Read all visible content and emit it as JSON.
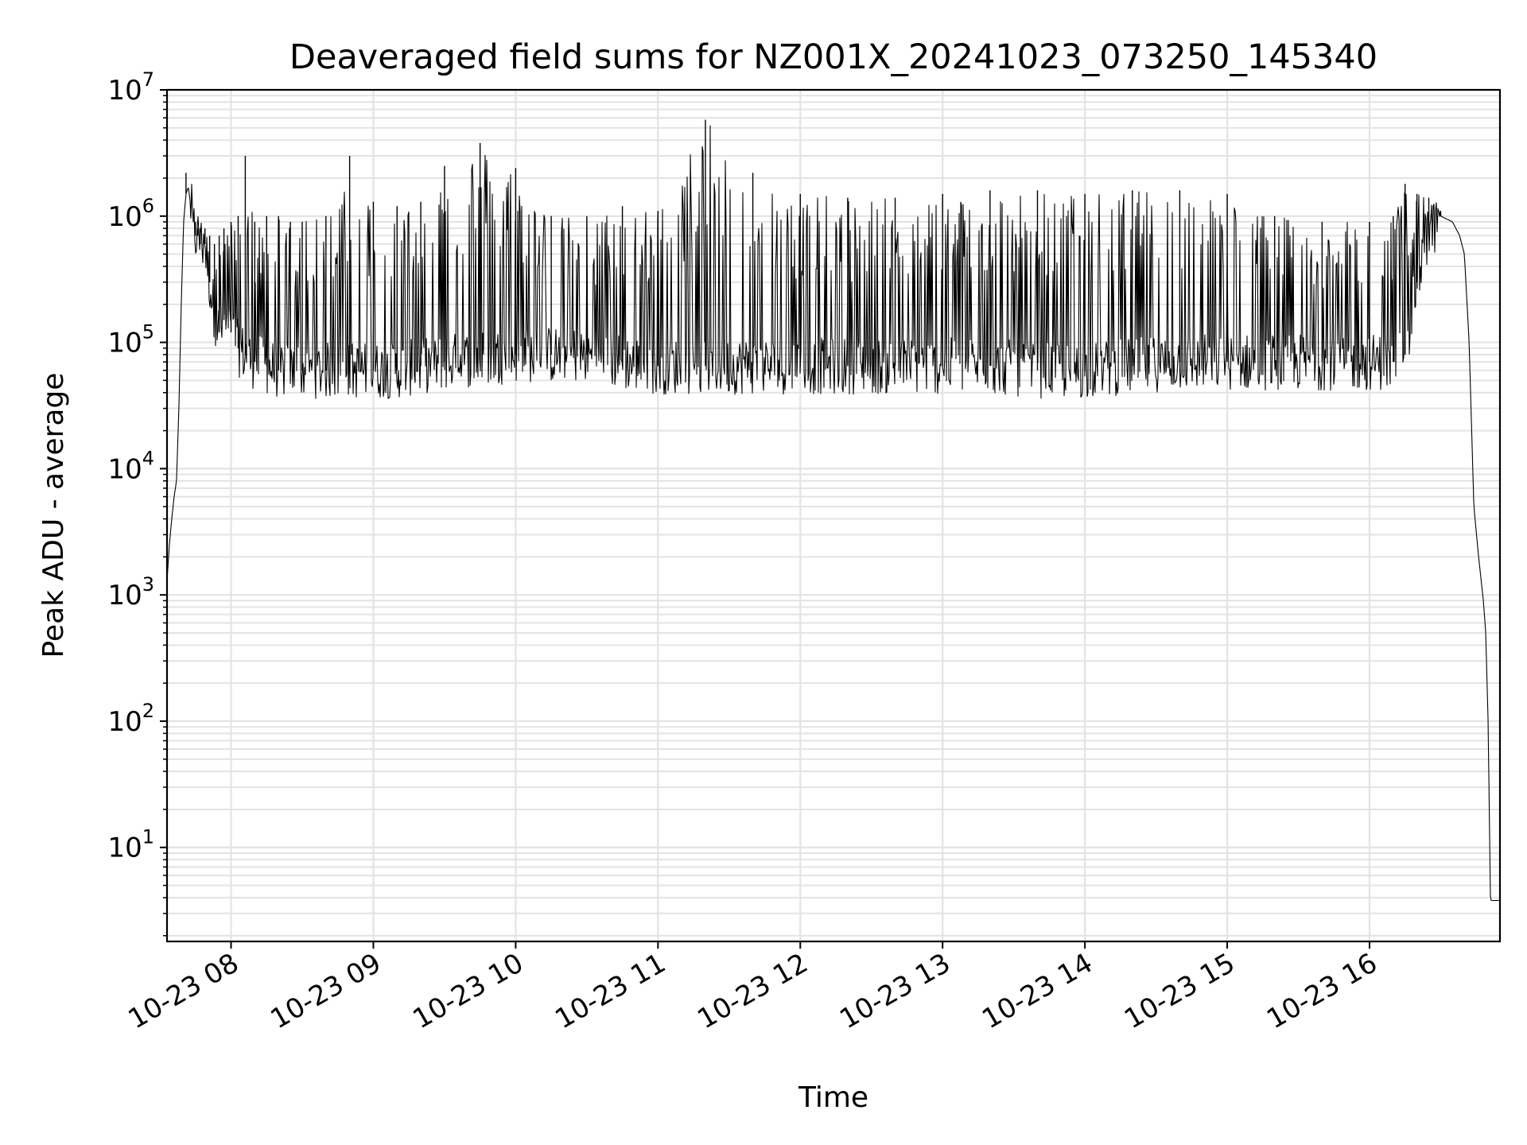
{
  "chart_data": {
    "type": "line",
    "title": "Deaveraged field sums for NZ001X_20241023_073250_145340",
    "xlabel": "Time",
    "ylabel": "Peak ADU - average",
    "yscale": "log",
    "grid": true,
    "xlim": [
      "2024-10-23 07:33",
      "2024-10-23 16:55"
    ],
    "ylim": [
      1.8,
      10000000
    ],
    "x_ticks": [
      {
        "value": "2024-10-23 08:00",
        "label": "10-23 08"
      },
      {
        "value": "2024-10-23 09:00",
        "label": "10-23 09"
      },
      {
        "value": "2024-10-23 10:00",
        "label": "10-23 10"
      },
      {
        "value": "2024-10-23 11:00",
        "label": "10-23 11"
      },
      {
        "value": "2024-10-23 12:00",
        "label": "10-23 12"
      },
      {
        "value": "2024-10-23 13:00",
        "label": "10-23 13"
      },
      {
        "value": "2024-10-23 14:00",
        "label": "10-23 14"
      },
      {
        "value": "2024-10-23 15:00",
        "label": "10-23 15"
      },
      {
        "value": "2024-10-23 16:00",
        "label": "10-23 16"
      }
    ],
    "y_ticks": [
      {
        "value": 10,
        "base": "10",
        "exp": "1"
      },
      {
        "value": 100,
        "base": "10",
        "exp": "2"
      },
      {
        "value": 1000,
        "base": "10",
        "exp": "3"
      },
      {
        "value": 10000,
        "base": "10",
        "exp": "4"
      },
      {
        "value": 100000,
        "base": "10",
        "exp": "5"
      },
      {
        "value": 1000000,
        "base": "10",
        "exp": "6"
      },
      {
        "value": 10000000,
        "base": "10",
        "exp": "7"
      }
    ],
    "series": [
      {
        "color": "#000000",
        "x": [
          "2024-10-23 07:33",
          "2024-10-23 07:34",
          "2024-10-23 07:35",
          "2024-10-23 07:36",
          "2024-10-23 07:37",
          "2024-10-23 07:38",
          "2024-10-23 07:39",
          "2024-10-23 07:40",
          "2024-10-23 07:41",
          "2024-10-23 07:42",
          "2024-10-23 07:43",
          "2024-10-23 07:44",
          "2024-10-23 07:45",
          "2024-10-23 07:46",
          "2024-10-23 07:47",
          "2024-10-23 07:49",
          "2024-10-23 07:51",
          "2024-10-23 07:53",
          "2024-10-23 07:55",
          "2024-10-23 07:57",
          "2024-10-23 08:00",
          "2024-10-23 08:03",
          "2024-10-23 08:06",
          "2024-10-23 08:10",
          "2024-10-23 08:15",
          "2024-10-23 08:20",
          "2024-10-23 08:25",
          "2024-10-23 08:30",
          "2024-10-23 08:40",
          "2024-10-23 08:50",
          "2024-10-23 09:00",
          "2024-10-23 09:10",
          "2024-10-23 09:20",
          "2024-10-23 09:30",
          "2024-10-23 09:45",
          "2024-10-23 10:00",
          "2024-10-23 10:15",
          "2024-10-23 10:30",
          "2024-10-23 10:45",
          "2024-10-23 11:00",
          "2024-10-23 11:20",
          "2024-10-23 11:40",
          "2024-10-23 12:00",
          "2024-10-23 12:20",
          "2024-10-23 12:40",
          "2024-10-23 13:00",
          "2024-10-23 13:20",
          "2024-10-23 13:40",
          "2024-10-23 14:00",
          "2024-10-23 14:20",
          "2024-10-23 14:40",
          "2024-10-23 15:00",
          "2024-10-23 15:20",
          "2024-10-23 15:40",
          "2024-10-23 16:00",
          "2024-10-23 16:10",
          "2024-10-23 16:15",
          "2024-10-23 16:20",
          "2024-10-23 16:25",
          "2024-10-23 16:30",
          "2024-10-23 16:35",
          "2024-10-23 16:38",
          "2024-10-23 16:40",
          "2024-10-23 16:42",
          "2024-10-23 16:44",
          "2024-10-23 16:46",
          "2024-10-23 16:48",
          "2024-10-23 16:49",
          "2024-10-23 16:50",
          "2024-10-23 16:51",
          "2024-10-23 16:55"
        ],
        "y": [
          1300,
          2500,
          4000,
          6000,
          8000,
          30000,
          200000,
          900000,
          1500000,
          1700000,
          1200000,
          900000,
          700000,
          700000,
          600000,
          600000,
          300000,
          170000,
          120000,
          150000,
          120000,
          90000,
          80000,
          70000,
          65000,
          60000,
          60000,
          60000,
          60000,
          60000,
          60000,
          60000,
          65000,
          70000,
          75000,
          80000,
          80000,
          80000,
          70000,
          65000,
          65000,
          65000,
          65000,
          65000,
          65000,
          65000,
          65000,
          60000,
          60000,
          65000,
          70000,
          70000,
          70000,
          70000,
          70000,
          70000,
          80000,
          300000,
          700000,
          1000000,
          900000,
          700000,
          500000,
          100000,
          5000,
          2000,
          900,
          500,
          100,
          3.8,
          3.8
        ],
        "upper": [
          null,
          null,
          null,
          null,
          null,
          null,
          null,
          null,
          2200000,
          null,
          1000000,
          900000,
          900000,
          800000,
          800000,
          800000,
          700000,
          600000,
          700000,
          800000,
          900000,
          1000000,
          3000000,
          900000,
          1000000,
          1000000,
          900000,
          900000,
          1000000,
          3000000,
          1300000,
          1200000,
          1300000,
          2500000,
          3800000,
          2400000,
          1000000,
          1000000,
          1200000,
          1100000,
          5800000,
          2200000,
          1500000,
          1400000,
          1400000,
          1500000,
          1600000,
          1600000,
          1500000,
          1600000,
          1600000,
          1500000,
          1000000,
          900000,
          900000,
          1000000,
          1800000,
          1500000,
          1400000,
          1100000,
          null,
          null,
          null,
          null,
          null,
          null,
          null,
          null,
          null,
          null,
          null
        ]
      }
    ]
  }
}
